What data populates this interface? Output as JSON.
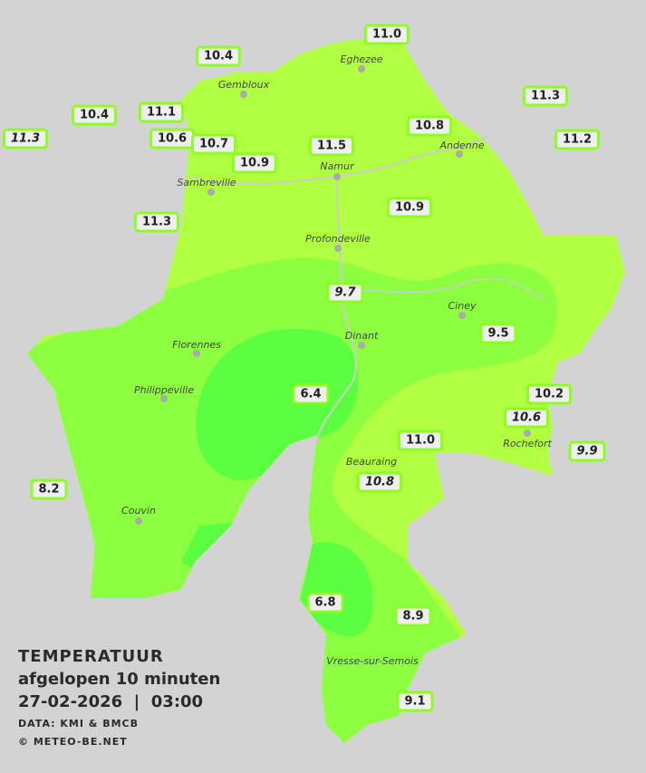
{
  "legend": {
    "title": "TEMPERATUUR",
    "subtitle": "afgelopen 10 minuten",
    "datetime": "27-02-2026  |  03:00",
    "source": "DATA: KMI & BMCB",
    "copyright": "© METEO-BE.NET"
  },
  "colors": {
    "warm_zone": "#b0ff40",
    "mid_zone": "#8cff40",
    "cool_zone": "#5cff40",
    "label_border": "#8cff20",
    "background": "#d3d3d3"
  },
  "cities": [
    "Eghezee",
    "Gembloux",
    "Andenne",
    "Namur",
    "Sambreville",
    "Profondeville",
    "Ciney",
    "Florennes",
    "Dinant",
    "Philippeville",
    "Rochefort",
    "Beauraing",
    "Couvin",
    "Vresse-sur-Semois"
  ],
  "stations": [
    "11.0",
    "10.4",
    "10.4",
    "11.1",
    "11.3",
    "10.6",
    "10.7",
    "10.9",
    "11.5",
    "10.8",
    "11.3",
    "11.2",
    "10.9",
    "11.3",
    "9.7",
    "9.5",
    "6.4",
    "10.2",
    "10.6",
    "11.0",
    "9.9",
    "10.8",
    "8.2",
    "6.8",
    "8.9",
    "9.1"
  ]
}
